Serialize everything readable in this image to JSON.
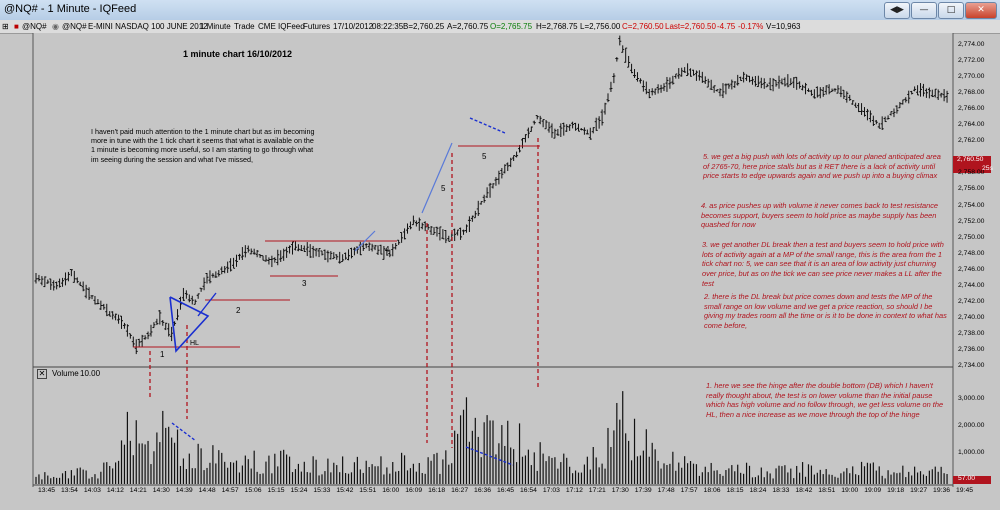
{
  "window": {
    "title": "@NQ# - 1 Minute - IQFeed",
    "buttons": [
      "◀▶",
      "—",
      "□",
      "✕"
    ]
  },
  "infobar": {
    "symbol": "@NQ#",
    "contract": "E-MINI NASDAQ 100 JUNE 2012",
    "interval": "1 Minute",
    "trade": "Trade",
    "exchange": "CME",
    "feed": "IQFeed",
    "futures": "Futures",
    "date": "17/10/2012",
    "time": "08:22:35",
    "bid": "B=2,760.25",
    "ask": "A=2,760.75",
    "open": "O=2,765.75",
    "high": "H=2,768.75",
    "low": "L=2,756.00",
    "close": "C=2,760.50",
    "last": "Last=2,760.50",
    "change": "-4.75",
    "pct": "-0.17%",
    "volume": "V=10,963"
  },
  "chart_title": "1 minute chart 16/10/2012",
  "intro_text": "I haven't paid much attention to the 1 minute chart but as im becoming more in tune with the 1 tick chart it seems that what is available on the 1 minute is becoming more useful, so I am starting to go through what im seeing during the session and what I've missed,",
  "notes": {
    "n5": "5. we get a big push with lots of activity up to our planed anticipated area of 2765-70, here price stalls but as it RET there is a lack of activity until price starts to edge upwards again and we push up into a buying climax",
    "n4": "4. as price pushes up with volume it never comes back to test resistance becomes support, buyers seem to hold price as maybe supply has been quashed for now",
    "n3": "3. we get another DL break then a test and buyers seem to hold price with lots of activity again at a MP of the small range, this is the area from the 1 tick chart no: 5, we can see that it is an area of low activity just churning over price, but as on the tick we can see price never makes a LL after the test",
    "n2": "2. there is the DL break but price comes down and tests the MP of the small range on low volume and we get a price reaction, so should I be giving my trades room all the time or is it to be done in context to what has come before,",
    "n1": "1. here we see the hinge after the double bottom (DB) which I haven't really thought about, the test is on lower volume than the initial pause which has high volume and no follow through, we get less volume on the HL, then a nice increase as we move through the top of the hinge"
  },
  "chart_labels": {
    "l1": "1",
    "l2": "2",
    "l3": "3",
    "l4": "4",
    "l5a": "5",
    "l5b": "5",
    "hl": "HL"
  },
  "volume_panel": {
    "title": "Volume",
    "value": "10.00",
    "current": "57.00"
  },
  "price_axis": {
    "ticks": [
      "2,774.00",
      "2,772.00",
      "2,770.00",
      "2,768.00",
      "2,766.00",
      "2,764.00",
      "2,762.00",
      "2,760.50",
      "2,758.00",
      "2,756.00",
      "2,754.00",
      "2,752.00",
      "2,750.00",
      "2,748.00",
      "2,746.00",
      "2,744.00",
      "2,742.00",
      "2,740.00",
      "2,738.00",
      "2,736.00",
      "2,734.00"
    ],
    "last_price": "2,760.50",
    "countdown": "25s"
  },
  "volume_axis": {
    "ticks": [
      "3,000.00",
      "2,000.00",
      "1,000.00"
    ]
  },
  "time_axis": [
    "13:45",
    "13:54",
    "14:03",
    "14:12",
    "14:21",
    "14:30",
    "14:39",
    "14:48",
    "14:57",
    "15:06",
    "15:15",
    "15:24",
    "15:33",
    "15:42",
    "15:51",
    "16:00",
    "16:09",
    "16:18",
    "16:27",
    "16:36",
    "16:45",
    "16:54",
    "17:03",
    "17:12",
    "17:21",
    "17:30",
    "17:39",
    "17:48",
    "17:57",
    "18:06",
    "18:15",
    "18:24",
    "18:33",
    "18:42",
    "18:51",
    "19:00",
    "19:09",
    "19:18",
    "19:27",
    "19:36",
    "19:45"
  ],
  "chart_data": {
    "type": "bar",
    "price_path": [
      [
        0,
        2745
      ],
      [
        7,
        2744
      ],
      [
        12,
        2745.5
      ],
      [
        18,
        2743
      ],
      [
        24,
        2741
      ],
      [
        30,
        2739
      ],
      [
        34,
        2736.5
      ],
      [
        38,
        2738
      ],
      [
        42,
        2740
      ],
      [
        46,
        2738
      ],
      [
        50,
        2743
      ],
      [
        54,
        2742
      ],
      [
        58,
        2745
      ],
      [
        64,
        2746
      ],
      [
        72,
        2748.5
      ],
      [
        80,
        2747
      ],
      [
        88,
        2749
      ],
      [
        96,
        2748
      ],
      [
        104,
        2747.5
      ],
      [
        112,
        2749
      ],
      [
        120,
        2748
      ],
      [
        128,
        2752
      ],
      [
        134,
        2751
      ],
      [
        140,
        2750
      ],
      [
        146,
        2751
      ],
      [
        152,
        2755
      ],
      [
        158,
        2758
      ],
      [
        164,
        2761
      ],
      [
        170,
        2765
      ],
      [
        176,
        2763
      ],
      [
        182,
        2764
      ],
      [
        188,
        2763
      ],
      [
        192,
        2765
      ],
      [
        196,
        2770
      ],
      [
        198,
        2774.5
      ],
      [
        202,
        2771
      ],
      [
        208,
        2768
      ],
      [
        214,
        2769
      ],
      [
        220,
        2771
      ],
      [
        226,
        2770
      ],
      [
        232,
        2768
      ],
      [
        240,
        2770
      ],
      [
        248,
        2769
      ],
      [
        256,
        2769.5
      ],
      [
        264,
        2768
      ],
      [
        272,
        2768.5
      ],
      [
        280,
        2766
      ],
      [
        286,
        2764
      ],
      [
        292,
        2766
      ],
      [
        298,
        2768.5
      ],
      [
        304,
        2768
      ],
      [
        310,
        2767.5
      ]
    ],
    "volume_path": [
      [
        0,
        300
      ],
      [
        10,
        400
      ],
      [
        20,
        500
      ],
      [
        28,
        800
      ],
      [
        32,
        3000
      ],
      [
        36,
        1600
      ],
      [
        44,
        2100
      ],
      [
        50,
        1300
      ],
      [
        60,
        1100
      ],
      [
        70,
        900
      ],
      [
        80,
        1000
      ],
      [
        90,
        850
      ],
      [
        100,
        800
      ],
      [
        110,
        750
      ],
      [
        120,
        900
      ],
      [
        130,
        800
      ],
      [
        140,
        1000
      ],
      [
        146,
        2900
      ],
      [
        150,
        1800
      ],
      [
        158,
        2400
      ],
      [
        166,
        1500
      ],
      [
        176,
        900
      ],
      [
        186,
        700
      ],
      [
        194,
        1600
      ],
      [
        198,
        3300
      ],
      [
        202,
        2000
      ],
      [
        210,
        1200
      ],
      [
        220,
        800
      ],
      [
        230,
        700
      ],
      [
        240,
        600
      ],
      [
        250,
        500
      ],
      [
        260,
        600
      ],
      [
        270,
        400
      ],
      [
        280,
        700
      ],
      [
        290,
        500
      ],
      [
        300,
        650
      ],
      [
        310,
        400
      ]
    ],
    "bar_count": 310,
    "price_ylim": [
      2734,
      2775.5
    ],
    "volume_ylim": [
      0,
      3600
    ]
  }
}
